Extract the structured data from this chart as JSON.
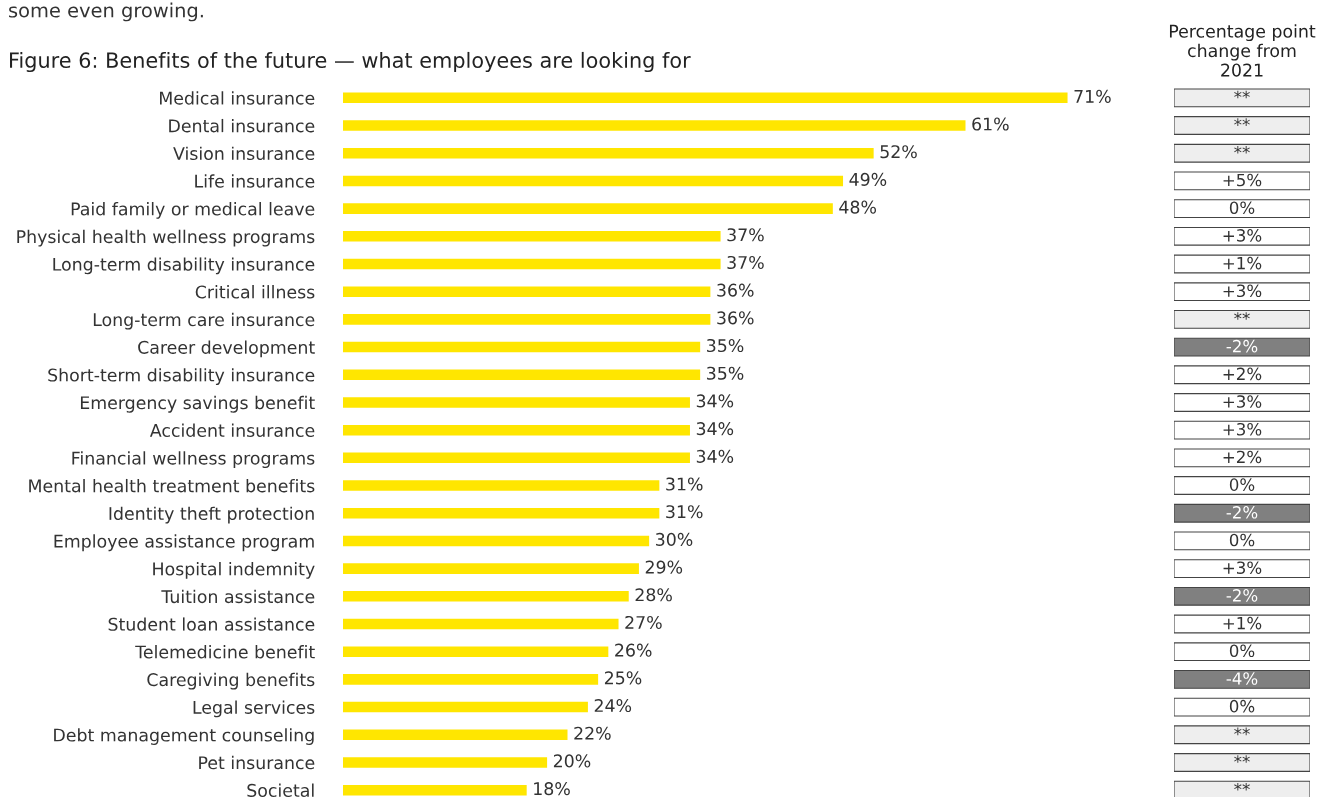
{
  "chart_data": [
    {
      "type": "bar",
      "orientation": "horizontal",
      "title": "Figure 6: Benefits of the future — what employees are looking for",
      "annotations": [
        "some even growing."
      ],
      "categories": [
        "Medical insurance",
        "Dental insurance",
        "Vision insurance",
        "Life insurance",
        "Paid family or medical leave",
        "Physical health wellness programs",
        "Long-term disability insurance",
        "Critical illness",
        "Long-term care insurance",
        "Career development",
        "Short-term disability insurance",
        "Emergency savings benefit",
        "Accident insurance",
        "Financial wellness programs",
        "Mental health treatment benefits",
        "Identity theft protection",
        "Employee assistance program",
        "Hospital indemnity",
        "Tuition assistance",
        "Student loan assistance",
        "Telemedicine benefit",
        "Caregiving benefits",
        "Legal services",
        "Debt management counseling",
        "Pet insurance",
        "Societal"
      ],
      "values": [
        71,
        61,
        52,
        49,
        48,
        37,
        37,
        36,
        36,
        35,
        35,
        34,
        34,
        34,
        31,
        31,
        30,
        29,
        28,
        27,
        26,
        25,
        24,
        22,
        20,
        18
      ],
      "value_labels": [
        "71%",
        "61%",
        "52%",
        "49%",
        "48%",
        "37%",
        "37%",
        "36%",
        "36%",
        "35%",
        "35%",
        "34%",
        "34%",
        "34%",
        "31%",
        "31%",
        "30%",
        "29%",
        "28%",
        "27%",
        "26%",
        "25%",
        "24%",
        "22%",
        "20%",
        "18%"
      ],
      "color": "#ffe600",
      "tick_labels": "y",
      "grid": false
    },
    {
      "type": "other",
      "title": "Percentage point\nchange from\n2021",
      "annotations": [
        "**",
        "**",
        "**",
        "+5%",
        "0%",
        "+3%",
        "+1%",
        "+3%",
        "**",
        "-2%",
        "+2%",
        "+3%",
        "+3%",
        "+2%",
        "0%",
        "-2%",
        "0%",
        "+3%",
        "-2%",
        "+1%",
        "0%",
        "-4%",
        "0%",
        "**",
        "**",
        "**"
      ],
      "colors": [
        "#eeeeee",
        "#eeeeee",
        "#eeeeee",
        "#ffffff",
        "#ffffff",
        "#ffffff",
        "#ffffff",
        "#ffffff",
        "#eeeeee",
        "#808080",
        "#ffffff",
        "#ffffff",
        "#ffffff",
        "#ffffff",
        "#ffffff",
        "#808080",
        "#ffffff",
        "#ffffff",
        "#808080",
        "#ffffff",
        "#ffffff",
        "#808080",
        "#ffffff",
        "#eeeeee",
        "#eeeeee",
        "#eeeeee"
      ]
    }
  ]
}
